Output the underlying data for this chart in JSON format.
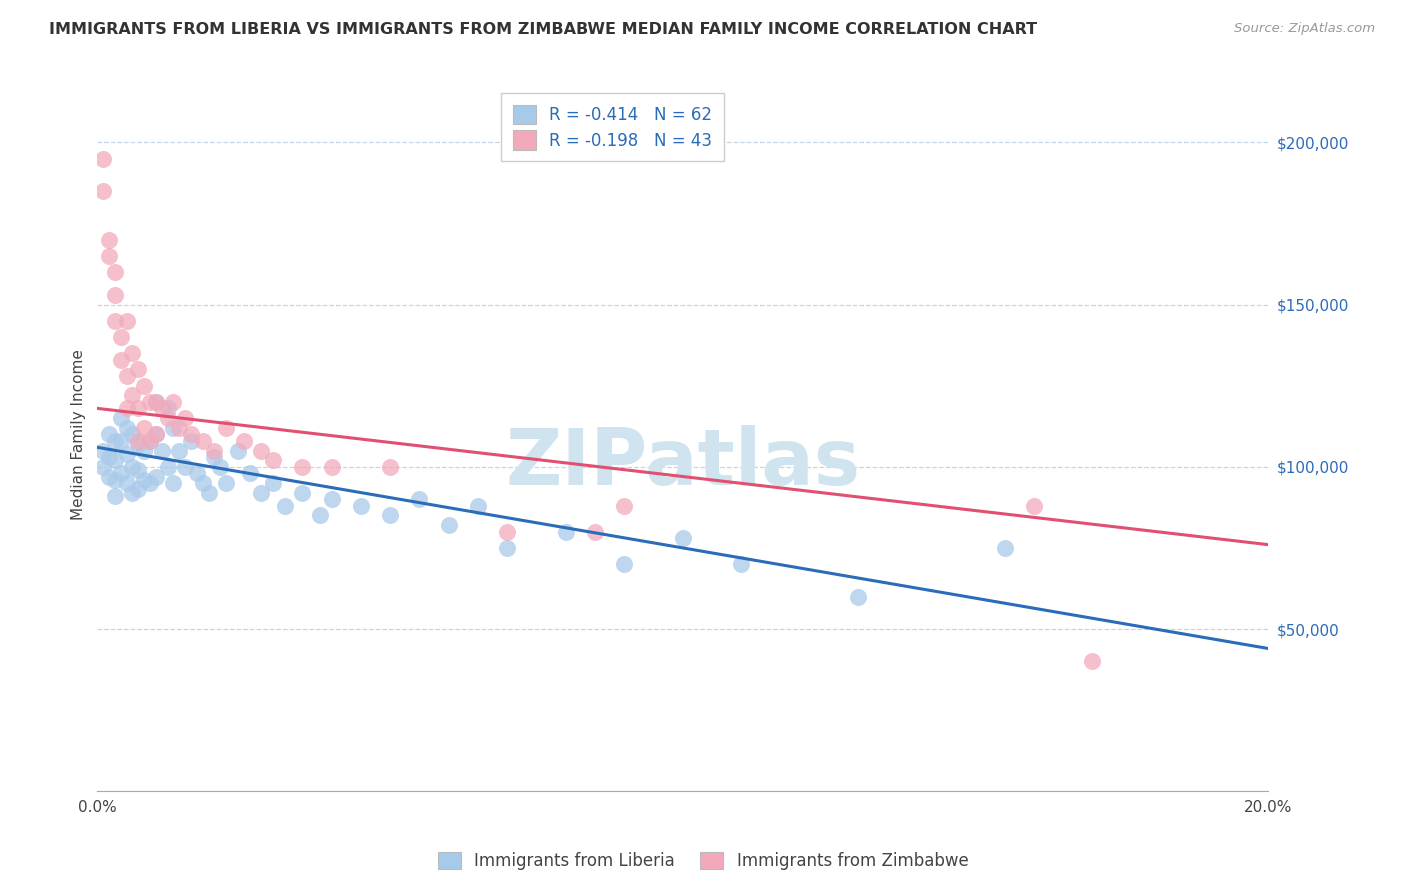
{
  "title": "IMMIGRANTS FROM LIBERIA VS IMMIGRANTS FROM ZIMBABWE MEDIAN FAMILY INCOME CORRELATION CHART",
  "source": "Source: ZipAtlas.com",
  "ylabel": "Median Family Income",
  "xlim": [
    0.0,
    0.2
  ],
  "ylim": [
    0,
    220000
  ],
  "yticks": [
    0,
    50000,
    100000,
    150000,
    200000
  ],
  "ytick_labels_right": [
    "",
    "$50,000",
    "$100,000",
    "$150,000",
    "$200,000"
  ],
  "xticks": [
    0.0,
    0.05,
    0.1,
    0.15,
    0.2
  ],
  "xtick_labels": [
    "0.0%",
    "",
    "",
    "",
    "20.0%"
  ],
  "liberia_color": "#A8CAEA",
  "zimbabwe_color": "#F2AABB",
  "liberia_line_color": "#2B6CB8",
  "zimbabwe_line_color": "#E05070",
  "watermark_color": "#D0E4F0",
  "legend_label_lib": "R = -0.414   N = 62",
  "legend_label_zim": "R = -0.198   N = 43",
  "liberia_scatter_x": [
    0.001,
    0.001,
    0.002,
    0.002,
    0.002,
    0.003,
    0.003,
    0.003,
    0.003,
    0.004,
    0.004,
    0.004,
    0.005,
    0.005,
    0.005,
    0.006,
    0.006,
    0.006,
    0.007,
    0.007,
    0.007,
    0.008,
    0.008,
    0.009,
    0.009,
    0.01,
    0.01,
    0.01,
    0.011,
    0.012,
    0.012,
    0.013,
    0.013,
    0.014,
    0.015,
    0.016,
    0.017,
    0.018,
    0.019,
    0.02,
    0.021,
    0.022,
    0.024,
    0.026,
    0.028,
    0.03,
    0.032,
    0.035,
    0.038,
    0.04,
    0.045,
    0.05,
    0.055,
    0.06,
    0.065,
    0.07,
    0.08,
    0.09,
    0.1,
    0.11,
    0.13,
    0.155
  ],
  "liberia_scatter_y": [
    105000,
    100000,
    110000,
    103000,
    97000,
    108000,
    102000,
    96000,
    91000,
    115000,
    108000,
    98000,
    112000,
    104000,
    95000,
    110000,
    100000,
    92000,
    107000,
    99000,
    93000,
    105000,
    96000,
    108000,
    95000,
    120000,
    110000,
    97000,
    105000,
    118000,
    100000,
    112000,
    95000,
    105000,
    100000,
    108000,
    98000,
    95000,
    92000,
    103000,
    100000,
    95000,
    105000,
    98000,
    92000,
    95000,
    88000,
    92000,
    85000,
    90000,
    88000,
    85000,
    90000,
    82000,
    88000,
    75000,
    80000,
    70000,
    78000,
    70000,
    60000,
    75000
  ],
  "zimbabwe_scatter_x": [
    0.001,
    0.001,
    0.002,
    0.002,
    0.003,
    0.003,
    0.003,
    0.004,
    0.004,
    0.005,
    0.005,
    0.005,
    0.006,
    0.006,
    0.007,
    0.007,
    0.007,
    0.008,
    0.008,
    0.009,
    0.009,
    0.01,
    0.01,
    0.011,
    0.012,
    0.013,
    0.014,
    0.015,
    0.016,
    0.018,
    0.02,
    0.022,
    0.025,
    0.028,
    0.03,
    0.035,
    0.04,
    0.05,
    0.07,
    0.085,
    0.09,
    0.16,
    0.17
  ],
  "zimbabwe_scatter_y": [
    195000,
    185000,
    170000,
    165000,
    160000,
    153000,
    145000,
    140000,
    133000,
    145000,
    128000,
    118000,
    135000,
    122000,
    130000,
    118000,
    108000,
    125000,
    112000,
    120000,
    108000,
    120000,
    110000,
    118000,
    115000,
    120000,
    112000,
    115000,
    110000,
    108000,
    105000,
    112000,
    108000,
    105000,
    102000,
    100000,
    100000,
    100000,
    80000,
    80000,
    88000,
    88000,
    40000
  ]
}
